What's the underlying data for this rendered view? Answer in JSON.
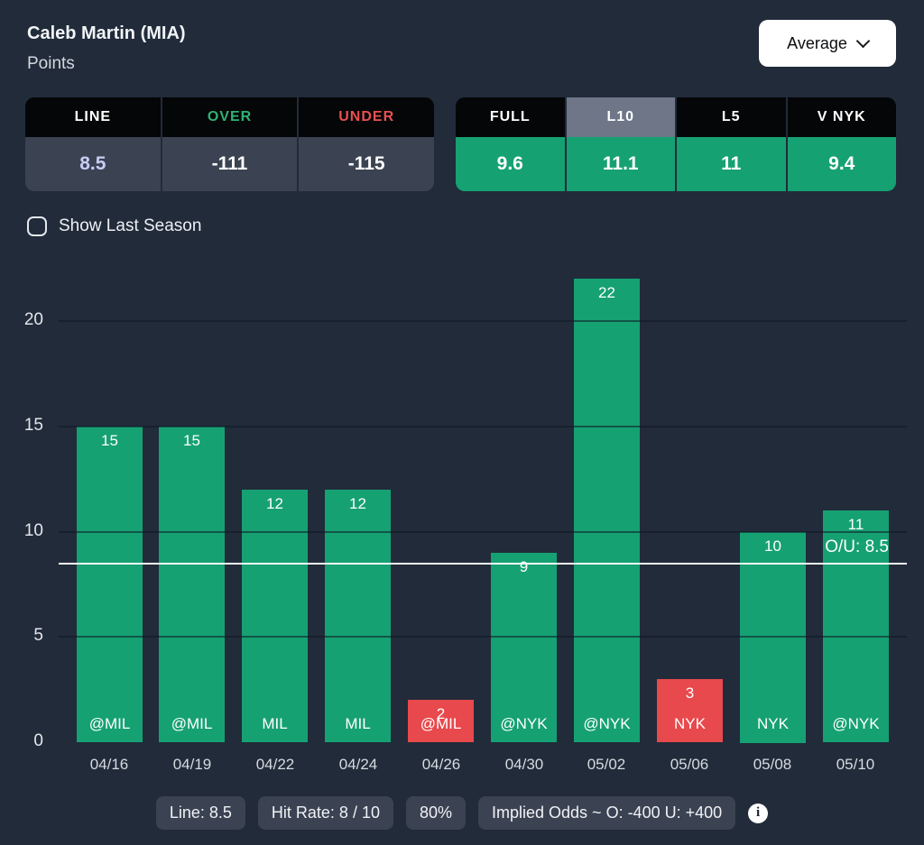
{
  "header": {
    "title": "Caleb Martin (MIA)",
    "subtitle": "Points",
    "average_dropdown_label": "Average"
  },
  "odds_table": {
    "headers": [
      "LINE",
      "OVER",
      "UNDER"
    ],
    "values": [
      "8.5",
      "-111",
      "-115"
    ]
  },
  "splits_table": {
    "headers": [
      "FULL",
      "L10",
      "L5",
      "V NYK"
    ],
    "selected_tab": "L10",
    "values": [
      "9.6",
      "11.1",
      "11",
      "9.4"
    ]
  },
  "show_last_season": {
    "label": "Show Last Season",
    "checked": false
  },
  "chart_data": {
    "type": "bar",
    "title": "",
    "xlabel": "",
    "ylabel": "",
    "x": [
      "04/16",
      "04/19",
      "04/22",
      "04/24",
      "04/26",
      "04/30",
      "05/02",
      "05/06",
      "05/08",
      "05/10"
    ],
    "opponents": [
      "@MIL",
      "@MIL",
      "MIL",
      "MIL",
      "@MIL",
      "@NYK",
      "@NYK",
      "NYK",
      "NYK",
      "@NYK"
    ],
    "values": [
      15,
      15,
      12,
      12,
      2,
      9,
      22,
      3,
      10,
      11
    ],
    "bar_colors": [
      "green",
      "green",
      "green",
      "green",
      "red",
      "green",
      "green",
      "red",
      "green",
      "green"
    ],
    "reference_line": {
      "value": 8.5,
      "label": "O/U: 8.5"
    },
    "yticks": [
      0,
      5,
      10,
      15,
      20
    ],
    "ylim": [
      0,
      22
    ],
    "grid": "horizontal",
    "legend": "none"
  },
  "footer": {
    "pills": [
      "Line: 8.5",
      "Hit Rate: 8 / 10",
      "80%",
      "Implied Odds ~ O: -400 U: +400"
    ],
    "info_glyph": "i"
  },
  "colors": {
    "background": "#212b3a",
    "green": "#16a173",
    "red": "#e8494c",
    "table_header_bg": "#050607",
    "selected_tab_bg": "#6e7688",
    "slate_row_bg": "#3b4353",
    "line_value_text": "#c7cdf3",
    "over_text": "#2eb273",
    "under_text": "#e85050",
    "ou_line": "#ffffff"
  }
}
